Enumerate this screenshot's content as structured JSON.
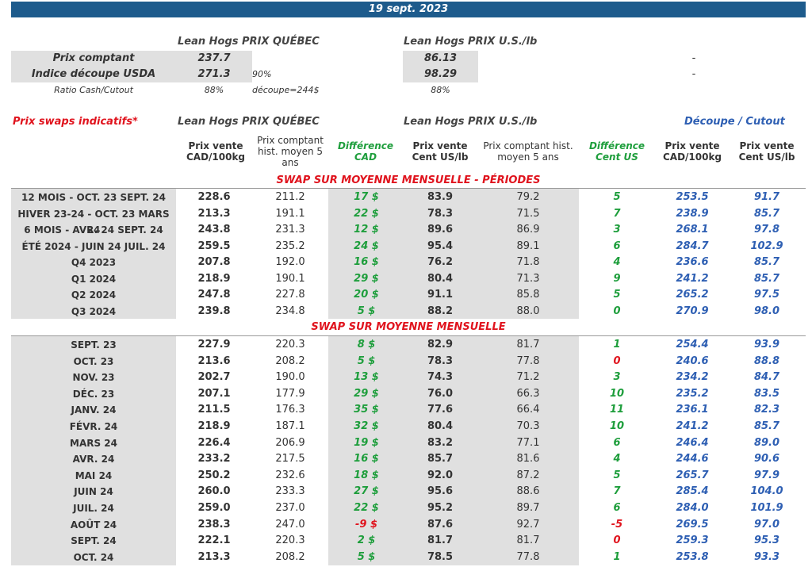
{
  "banner": {
    "date": "19 sept. 2023"
  },
  "spot": {
    "quebec_header": "Lean Hogs PRIX QUÉBEC",
    "us_header": "Lean Hogs PRIX U.S./lb",
    "rows": [
      {
        "label": "Prix comptant",
        "quebec": "237.7",
        "note": "",
        "us": "86.13",
        "dash": "-"
      },
      {
        "label": "Indice découpe USDA",
        "quebec": "271.3",
        "note": "90% découpe=244$",
        "us": "98.29",
        "dash": "-"
      },
      {
        "label": "Ratio Cash/Cutout",
        "quebec": "88%",
        "note": "",
        "us": "88%",
        "dash": ""
      }
    ]
  },
  "swaps": {
    "title": "Prix swaps indicatifs*",
    "quebec_header": "Lean Hogs PRIX QUÉBEC",
    "us_header": "Lean Hogs PRIX U.S./lb",
    "cutout_header": "Découpe / Cutout",
    "columns": [
      "Prix vente CAD/100kg",
      "Prix comptant hist. moyen 5 ans",
      "Différence CAD",
      "Prix vente Cent US/lb",
      "Prix comptant hist. moyen 5 ans",
      "Différence Cent US",
      "Prix vente CAD/100kg",
      "Prix vente Cent US/lb"
    ],
    "section1_title": "SWAP SUR MOYENNE MENSUELLE - PÉRIODES",
    "section1_rows": [
      {
        "label": "12 MOIS - OCT. 23 SEPT. 24",
        "cad": "228.6",
        "hist": "211.2",
        "diff": "17 $",
        "us": "83.9",
        "hist_us": "79.2",
        "diff_us": "5",
        "cut_cad": "253.5",
        "cut_us": "91.7"
      },
      {
        "label": "HIVER 23-24 -  OCT. 23 MARS 24",
        "cad": "213.3",
        "hist": "191.1",
        "diff": "22 $",
        "us": "78.3",
        "hist_us": "71.5",
        "diff_us": "7",
        "cut_cad": "238.9",
        "cut_us": "85.7"
      },
      {
        "label": "6 MOIS -  AVR. 24 SEPT. 24",
        "cad": "243.8",
        "hist": "231.3",
        "diff": "12 $",
        "us": "89.6",
        "hist_us": "86.9",
        "diff_us": "3",
        "cut_cad": "268.1",
        "cut_us": "97.8"
      },
      {
        "label": "ÉTÉ 2024 - JUIN 24 JUIL. 24",
        "cad": "259.5",
        "hist": "235.2",
        "diff": "24 $",
        "us": "95.4",
        "hist_us": "89.1",
        "diff_us": "6",
        "cut_cad": "284.7",
        "cut_us": "102.9"
      },
      {
        "label": "Q4 2023",
        "cad": "207.8",
        "hist": "192.0",
        "diff": "16 $",
        "us": "76.2",
        "hist_us": "71.8",
        "diff_us": "4",
        "cut_cad": "236.6",
        "cut_us": "85.7"
      },
      {
        "label": "Q1 2024",
        "cad": "218.9",
        "hist": "190.1",
        "diff": "29 $",
        "us": "80.4",
        "hist_us": "71.3",
        "diff_us": "9",
        "cut_cad": "241.2",
        "cut_us": "85.7"
      },
      {
        "label": "Q2 2024",
        "cad": "247.8",
        "hist": "227.8",
        "diff": "20 $",
        "us": "91.1",
        "hist_us": "85.8",
        "diff_us": "5",
        "cut_cad": "265.2",
        "cut_us": "97.5"
      },
      {
        "label": "Q3 2024",
        "cad": "239.8",
        "hist": "234.8",
        "diff": "5 $",
        "us": "88.2",
        "hist_us": "88.0",
        "diff_us": "0",
        "cut_cad": "270.9",
        "cut_us": "98.0"
      }
    ],
    "section2_title": "SWAP SUR MOYENNE MENSUELLE",
    "section2_rows": [
      {
        "label": "SEPT. 23",
        "cad": "227.9",
        "hist": "220.3",
        "diff": "8 $",
        "us": "82.9",
        "hist_us": "81.7",
        "diff_us": "1",
        "cut_cad": "254.4",
        "cut_us": "93.9"
      },
      {
        "label": "OCT. 23",
        "cad": "213.6",
        "hist": "208.2",
        "diff": "5 $",
        "us": "78.3",
        "hist_us": "77.8",
        "diff_us": "0",
        "cut_cad": "240.6",
        "cut_us": "88.8"
      },
      {
        "label": "NOV. 23",
        "cad": "202.7",
        "hist": "190.0",
        "diff": "13 $",
        "us": "74.3",
        "hist_us": "71.2",
        "diff_us": "3",
        "cut_cad": "234.2",
        "cut_us": "84.7"
      },
      {
        "label": "DÉC. 23",
        "cad": "207.1",
        "hist": "177.9",
        "diff": "29 $",
        "us": "76.0",
        "hist_us": "66.3",
        "diff_us": "10",
        "cut_cad": "235.2",
        "cut_us": "83.5"
      },
      {
        "label": "JANV. 24",
        "cad": "211.5",
        "hist": "176.3",
        "diff": "35 $",
        "us": "77.6",
        "hist_us": "66.4",
        "diff_us": "11",
        "cut_cad": "236.1",
        "cut_us": "82.3"
      },
      {
        "label": "FÉVR. 24",
        "cad": "218.9",
        "hist": "187.1",
        "diff": "32 $",
        "us": "80.4",
        "hist_us": "70.3",
        "diff_us": "10",
        "cut_cad": "241.2",
        "cut_us": "85.7"
      },
      {
        "label": "MARS 24",
        "cad": "226.4",
        "hist": "206.9",
        "diff": "19 $",
        "us": "83.2",
        "hist_us": "77.1",
        "diff_us": "6",
        "cut_cad": "246.4",
        "cut_us": "89.0"
      },
      {
        "label": "AVR. 24",
        "cad": "233.2",
        "hist": "217.5",
        "diff": "16 $",
        "us": "85.7",
        "hist_us": "81.6",
        "diff_us": "4",
        "cut_cad": "244.6",
        "cut_us": "90.6"
      },
      {
        "label": "MAI 24",
        "cad": "250.2",
        "hist": "232.6",
        "diff": "18 $",
        "us": "92.0",
        "hist_us": "87.2",
        "diff_us": "5",
        "cut_cad": "265.7",
        "cut_us": "97.9"
      },
      {
        "label": "JUIN 24",
        "cad": "260.0",
        "hist": "233.3",
        "diff": "27 $",
        "us": "95.6",
        "hist_us": "88.6",
        "diff_us": "7",
        "cut_cad": "285.4",
        "cut_us": "104.0"
      },
      {
        "label": "JUIL. 24",
        "cad": "259.0",
        "hist": "237.0",
        "diff": "22 $",
        "us": "95.2",
        "hist_us": "89.7",
        "diff_us": "6",
        "cut_cad": "284.0",
        "cut_us": "101.9"
      },
      {
        "label": "AOÛT 24",
        "cad": "238.3",
        "hist": "247.0",
        "diff": "-9 $",
        "us": "87.6",
        "hist_us": "92.7",
        "diff_us": "-5",
        "cut_cad": "269.5",
        "cut_us": "97.0"
      },
      {
        "label": "SEPT. 24",
        "cad": "222.1",
        "hist": "220.3",
        "diff": "2 $",
        "us": "81.7",
        "hist_us": "81.7",
        "diff_us": "0",
        "cut_cad": "259.3",
        "cut_us": "95.3"
      },
      {
        "label": "OCT. 24",
        "cad": "213.3",
        "hist": "208.2",
        "diff": "5 $",
        "us": "78.5",
        "hist_us": "77.8",
        "diff_us": "1",
        "cut_cad": "253.8",
        "cut_us": "93.3"
      }
    ]
  },
  "colors": {
    "banner": "#1d5b8c",
    "green": "#1e9e3c",
    "red": "#e0141e",
    "blue": "#2e5fb3",
    "grey": "#e0e0e0"
  }
}
